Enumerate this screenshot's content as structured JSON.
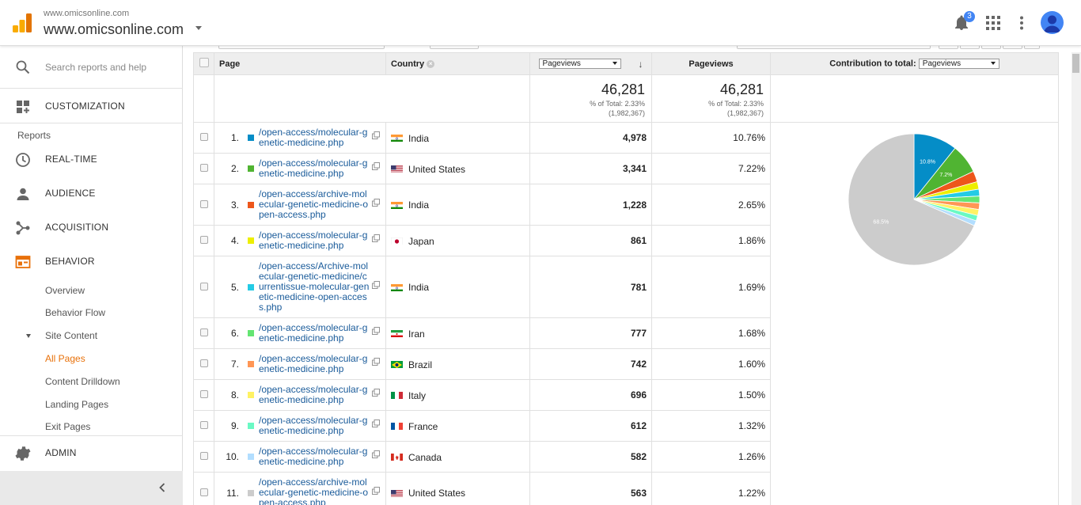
{
  "header": {
    "account_small": "www.omicsonline.com",
    "account_big": "www.omicsonline.com",
    "notification_count": "3",
    "logo_color": "#f4b400"
  },
  "sidebar": {
    "search_placeholder": "Search reports and help",
    "customization": "CUSTOMIZATION",
    "reports_label": "Reports",
    "items": {
      "realtime": "REAL-TIME",
      "audience": "AUDIENCE",
      "acquisition": "ACQUISITION",
      "behavior": "BEHAVIOR",
      "admin": "ADMIN"
    },
    "behavior_sub": {
      "overview": "Overview",
      "behavior_flow": "Behavior Flow",
      "site_content": "Site Content",
      "all_pages": "All Pages",
      "content_drilldown": "Content Drilldown",
      "landing_pages": "Landing Pages",
      "exit_pages": "Exit Pages"
    },
    "accent": "#e8710a"
  },
  "table": {
    "headers": {
      "page": "Page",
      "country": "Country",
      "metric_select": "Pageviews",
      "pageviews": "Pageviews",
      "contribution_label": "Contribution to total:",
      "contribution_select": "Pageviews"
    },
    "summary": {
      "pv_value": "46,281",
      "pv_pct": "% of Total: 2.33%",
      "pv_total": "(1,982,367)",
      "pv2_value": "46,281",
      "pv2_pct": "% of Total: 2.33%",
      "pv2_total": "(1,982,367)"
    },
    "rows": [
      {
        "num": "1.",
        "page": "/open-access/molecular-genetic-medicine.php",
        "country": "India",
        "flag": "in",
        "pageviews": "4,978",
        "pct": "10.76%",
        "color": "#058dc7"
      },
      {
        "num": "2.",
        "page": "/open-access/molecular-genetic-medicine.php",
        "country": "United States",
        "flag": "us",
        "pageviews": "3,341",
        "pct": "7.22%",
        "color": "#50b432"
      },
      {
        "num": "3.",
        "page": "/open-access/archive-molecular-genetic-medicine-open-access.php",
        "country": "India",
        "flag": "in",
        "pageviews": "1,228",
        "pct": "2.65%",
        "color": "#ed561b"
      },
      {
        "num": "4.",
        "page": "/open-access/molecular-genetic-medicine.php",
        "country": "Japan",
        "flag": "jp",
        "pageviews": "861",
        "pct": "1.86%",
        "color": "#edef00"
      },
      {
        "num": "5.",
        "page": "/open-access/Archive-molecular-genetic-medicine/currentissue-molecular-genetic-medicine-open-access.php",
        "country": "India",
        "flag": "in",
        "pageviews": "781",
        "pct": "1.69%",
        "color": "#24cbe5"
      },
      {
        "num": "6.",
        "page": "/open-access/molecular-genetic-medicine.php",
        "country": "Iran",
        "flag": "ir",
        "pageviews": "777",
        "pct": "1.68%",
        "color": "#64e572"
      },
      {
        "num": "7.",
        "page": "/open-access/molecular-genetic-medicine.php",
        "country": "Brazil",
        "flag": "br",
        "pageviews": "742",
        "pct": "1.60%",
        "color": "#ff9655"
      },
      {
        "num": "8.",
        "page": "/open-access/molecular-genetic-medicine.php",
        "country": "Italy",
        "flag": "it",
        "pageviews": "696",
        "pct": "1.50%",
        "color": "#fff263"
      },
      {
        "num": "9.",
        "page": "/open-access/molecular-genetic-medicine.php",
        "country": "France",
        "flag": "fr",
        "pageviews": "612",
        "pct": "1.32%",
        "color": "#6af9c4"
      },
      {
        "num": "10.",
        "page": "/open-access/molecular-genetic-medicine.php",
        "country": "Canada",
        "flag": "ca",
        "pageviews": "582",
        "pct": "1.26%",
        "color": "#b2deff"
      },
      {
        "num": "11.",
        "page": "/open-access/archive-molecular-genetic-medicine-open-access.php",
        "country": "United States",
        "flag": "us",
        "pageviews": "563",
        "pct": "1.22%",
        "color": "#cccccc"
      }
    ]
  },
  "chart_data": {
    "type": "pie",
    "slices": [
      {
        "value": 10.76,
        "color": "#058dc7",
        "label": "10.8%"
      },
      {
        "value": 7.22,
        "color": "#50b432",
        "label": "7.2%"
      },
      {
        "value": 2.65,
        "color": "#ed561b",
        "label": ""
      },
      {
        "value": 1.86,
        "color": "#edef00",
        "label": ""
      },
      {
        "value": 1.69,
        "color": "#24cbe5",
        "label": ""
      },
      {
        "value": 1.68,
        "color": "#64e572",
        "label": ""
      },
      {
        "value": 1.6,
        "color": "#ff9655",
        "label": ""
      },
      {
        "value": 1.5,
        "color": "#fff263",
        "label": ""
      },
      {
        "value": 1.32,
        "color": "#6af9c4",
        "label": ""
      },
      {
        "value": 1.26,
        "color": "#b2deff",
        "label": ""
      },
      {
        "value": 68.5,
        "color": "#cccccc",
        "label": "68.5%"
      }
    ]
  }
}
